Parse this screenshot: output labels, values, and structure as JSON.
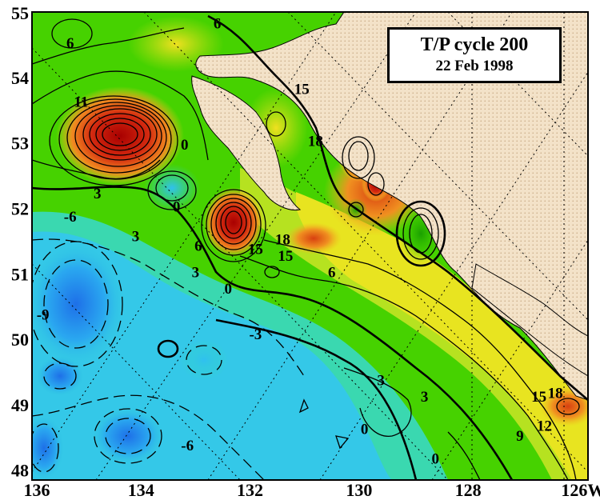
{
  "title": {
    "main": "T/P cycle 200",
    "date": "22 Feb 1998"
  },
  "axes": {
    "x_ticks": [
      "136",
      "134",
      "132",
      "130",
      "128",
      "126W"
    ],
    "y_ticks": [
      "55",
      "54",
      "53",
      "52",
      "51",
      "50",
      "49",
      "48"
    ]
  },
  "contour_labels": [
    {
      "text": "6",
      "lon": -135.3,
      "lat": 54.45
    },
    {
      "text": "6",
      "lon": -132.6,
      "lat": 54.75
    },
    {
      "text": "0",
      "lon": -133.2,
      "lat": 52.9
    },
    {
      "text": "3",
      "lon": -134.8,
      "lat": 52.15
    },
    {
      "text": "0",
      "lon": -133.35,
      "lat": 51.95
    },
    {
      "text": "-6",
      "lon": -135.3,
      "lat": 51.8
    },
    {
      "text": "3",
      "lon": -134.1,
      "lat": 51.5
    },
    {
      "text": "6",
      "lon": -132.95,
      "lat": 51.35
    },
    {
      "text": "3",
      "lon": -133.0,
      "lat": 50.95
    },
    {
      "text": "0",
      "lon": -132.4,
      "lat": 50.7
    },
    {
      "text": "15",
      "lon": -131.9,
      "lat": 51.3
    },
    {
      "text": "15",
      "lon": -131.35,
      "lat": 51.2
    },
    {
      "text": "18",
      "lon": -131.4,
      "lat": 51.45
    },
    {
      "text": "6",
      "lon": -130.5,
      "lat": 50.95
    },
    {
      "text": "15",
      "lon": -131.05,
      "lat": 53.75
    },
    {
      "text": "18",
      "lon": -130.8,
      "lat": 52.95
    },
    {
      "text": "-9",
      "lon": -135.8,
      "lat": 50.3
    },
    {
      "text": "-3",
      "lon": -131.9,
      "lat": 50.0
    },
    {
      "text": "-6",
      "lon": -133.15,
      "lat": 48.3
    },
    {
      "text": "3",
      "lon": -129.6,
      "lat": 49.3
    },
    {
      "text": "3",
      "lon": -128.8,
      "lat": 49.05
    },
    {
      "text": "0",
      "lon": -129.9,
      "lat": 48.55
    },
    {
      "text": "0",
      "lon": -128.6,
      "lat": 48.1
    },
    {
      "text": "9",
      "lon": -127.05,
      "lat": 48.45
    },
    {
      "text": "12",
      "lon": -126.6,
      "lat": 48.6
    },
    {
      "text": "15",
      "lon": -126.7,
      "lat": 49.05
    },
    {
      "text": "18",
      "lon": -126.4,
      "lat": 49.1
    },
    {
      "text": "11",
      "lon": -135.1,
      "lat": 53.55
    }
  ],
  "colors": {
    "land": "#f4e4cc",
    "ocean_base": "#4cd600",
    "high": "#cc1a00",
    "low": "#1e7ff0",
    "contour": "#000000",
    "grid": "#000000"
  }
}
